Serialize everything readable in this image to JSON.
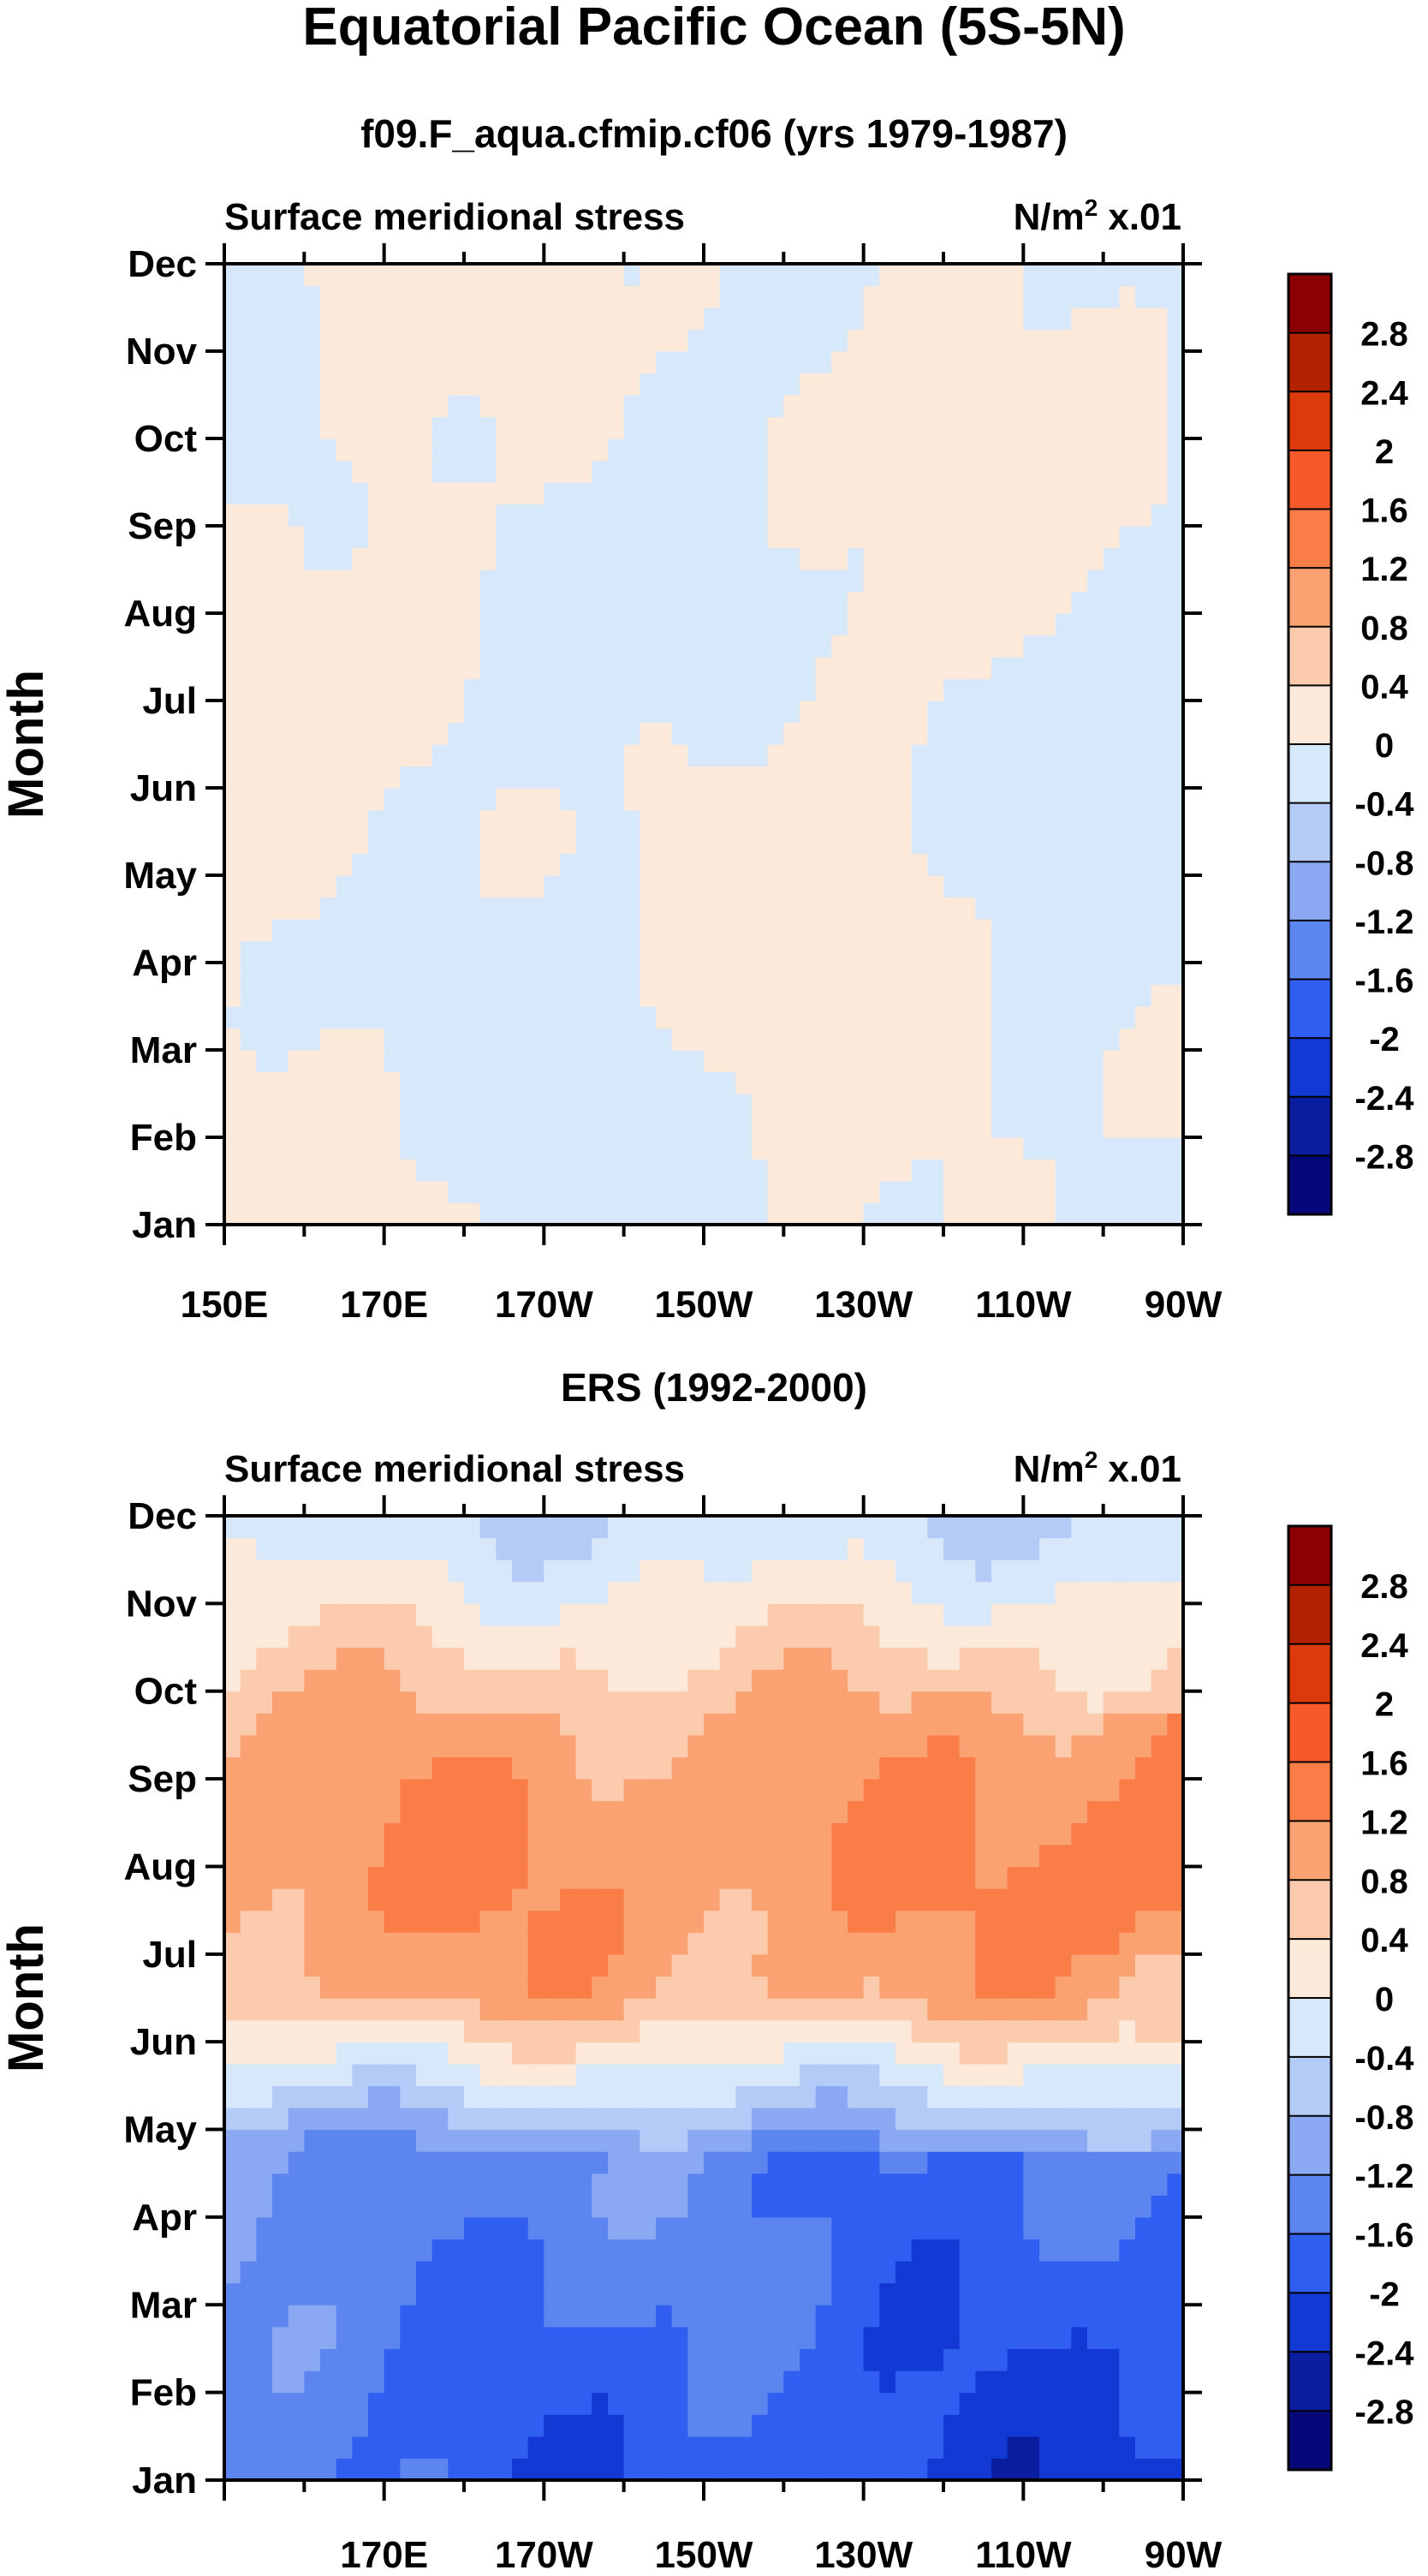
{
  "figure": {
    "title": "Equatorial Pacific Ocean (5S-5N)"
  },
  "colorbar": {
    "labels": [
      "2.8",
      "2.4",
      "2",
      "1.6",
      "1.2",
      "0.8",
      "0.4",
      "0",
      "-0.4",
      "-0.8",
      "-1.2",
      "-1.6",
      "-2",
      "-2.4",
      "-2.8"
    ],
    "colors": [
      "#8b0000",
      "#b22200",
      "#dc3a0d",
      "#f75a2a",
      "#fa7d48",
      "#fba272",
      "#fccaac",
      "#fde9da",
      "#d7e8fb",
      "#b5cbf7",
      "#8aa9f2",
      "#5d85ef",
      "#2f5ef0",
      "#1339d4",
      "#0a1d9e",
      "#06087a"
    ]
  },
  "chart_data": [
    {
      "type": "heatmap",
      "subtitle": "f09.F_aqua.cfmip.cf06 (yrs 1979-1987)",
      "left_label": "Surface meridional stress",
      "right_label": "N/m",
      "units_sup": "2",
      "units_scale": "x.01",
      "ylabel": "Month",
      "y_ticks": [
        "Jan",
        "Feb",
        "Mar",
        "Apr",
        "May",
        "Jun",
        "Jul",
        "Aug",
        "Sep",
        "Oct",
        "Nov",
        "Dec"
      ],
      "x_ticks": [
        "150E",
        "170E",
        "170W",
        "150W",
        "130W",
        "110W",
        "90W"
      ],
      "x_range_deg": [
        150,
        270
      ],
      "value_range": [
        -0.4,
        0.4
      ],
      "pattern": "model"
    },
    {
      "type": "heatmap",
      "subtitle": "ERS (1992-2000)",
      "left_label": "Surface meridional stress",
      "right_label": "N/m",
      "units_sup": "2",
      "units_scale": "x.01",
      "ylabel": "Month",
      "y_ticks": [
        "Jan",
        "Feb",
        "Mar",
        "Apr",
        "May",
        "Jun",
        "Jul",
        "Aug",
        "Sep",
        "Oct",
        "Nov",
        "Dec"
      ],
      "x_ticks": [
        "170E",
        "170W",
        "150W",
        "130W",
        "110W",
        "90W"
      ],
      "x_range_deg": [
        150,
        270
      ],
      "value_range": [
        -2.4,
        1.6
      ],
      "pattern": "obs"
    }
  ]
}
